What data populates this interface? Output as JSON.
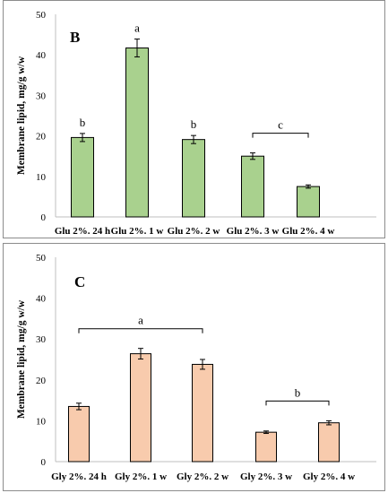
{
  "chart_data": [
    {
      "type": "bar",
      "panel_label": "B",
      "ylabel": "Membrane lipid, mg/g w/w",
      "ylim": [
        0,
        50
      ],
      "yticks": [
        0,
        10,
        20,
        30,
        40,
        50
      ],
      "categories": [
        "Glu 2%. 24 h",
        "Glu 2%. 1 w",
        "Glu 2%. 2 w",
        "Glu 2%. 3 w",
        "Glu 2%. 4 w"
      ],
      "values": [
        19.6,
        41.7,
        19.1,
        15.0,
        7.5
      ],
      "errors": [
        1.0,
        2.2,
        1.0,
        0.8,
        0.4
      ],
      "bar_color": "#a9d18e",
      "significance": [
        {
          "label": "b",
          "bars": [
            0
          ]
        },
        {
          "label": "a",
          "bars": [
            1
          ]
        },
        {
          "label": "b",
          "bars": [
            2
          ]
        },
        {
          "label": "c",
          "bars": [
            3,
            4
          ]
        }
      ]
    },
    {
      "type": "bar",
      "panel_label": "C",
      "ylabel": "Membrane lipid, mg/g w/w",
      "ylim": [
        0,
        50
      ],
      "yticks": [
        0,
        10,
        20,
        30,
        40,
        50
      ],
      "categories": [
        "Gly 2%. 24 h",
        "Gly 2%. 1 w",
        "Gly 2%. 2 w",
        "Gly 2%. 3 w",
        "Gly 2%. 4 w"
      ],
      "values": [
        13.5,
        26.4,
        23.8,
        7.2,
        9.5
      ],
      "errors": [
        0.8,
        1.3,
        1.2,
        0.3,
        0.5
      ],
      "bar_color": "#f8cbad",
      "significance": [
        {
          "label": "a",
          "bars": [
            0,
            1,
            2
          ]
        },
        {
          "label": "b",
          "bars": [
            3,
            4
          ]
        }
      ]
    }
  ]
}
